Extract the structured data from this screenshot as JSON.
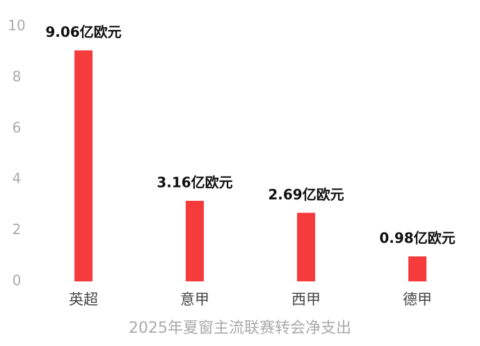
{
  "chart_data": {
    "type": "bar",
    "title": "2025年夏窗主流联赛转会净支出",
    "categories": [
      "英超",
      "意甲",
      "西甲",
      "德甲"
    ],
    "values": [
      9.06,
      3.16,
      2.69,
      0.98
    ],
    "value_labels": [
      "9.06亿欧元",
      "3.16亿欧元",
      "2.69亿欧元",
      "0.98亿欧元"
    ],
    "color": "#f53b3b",
    "ylim": [
      0,
      10
    ],
    "yticks": [
      0,
      2,
      4,
      6,
      8,
      10
    ],
    "grid": false
  }
}
